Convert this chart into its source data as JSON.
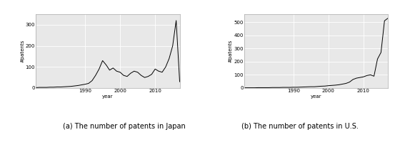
{
  "japan_years": [
    1976,
    1977,
    1978,
    1979,
    1980,
    1981,
    1982,
    1983,
    1984,
    1985,
    1986,
    1987,
    1988,
    1989,
    1990,
    1991,
    1992,
    1993,
    1994,
    1995,
    1996,
    1997,
    1998,
    1999,
    2000,
    2001,
    2002,
    2003,
    2004,
    2005,
    2006,
    2007,
    2008,
    2009,
    2010,
    2011,
    2012,
    2013,
    2014,
    2015,
    2016,
    2017
  ],
  "japan_values": [
    2,
    3,
    3,
    3,
    4,
    4,
    5,
    5,
    6,
    7,
    8,
    10,
    12,
    15,
    18,
    22,
    35,
    60,
    90,
    130,
    110,
    85,
    95,
    80,
    75,
    60,
    55,
    70,
    80,
    75,
    60,
    50,
    55,
    65,
    90,
    80,
    75,
    100,
    140,
    200,
    320,
    30
  ],
  "us_years": [
    1976,
    1977,
    1978,
    1979,
    1980,
    1981,
    1982,
    1983,
    1984,
    1985,
    1986,
    1987,
    1988,
    1989,
    1990,
    1991,
    1992,
    1993,
    1994,
    1995,
    1996,
    1997,
    1998,
    1999,
    2000,
    2001,
    2002,
    2003,
    2004,
    2005,
    2006,
    2007,
    2008,
    2009,
    2010,
    2011,
    2012,
    2013,
    2014,
    2015,
    2016,
    2017
  ],
  "us_values": [
    2,
    2,
    2,
    2,
    3,
    3,
    3,
    3,
    4,
    4,
    4,
    5,
    5,
    5,
    6,
    6,
    7,
    8,
    9,
    10,
    10,
    12,
    14,
    15,
    18,
    20,
    22,
    25,
    30,
    35,
    45,
    65,
    75,
    80,
    85,
    95,
    100,
    90,
    220,
    270,
    510,
    530
  ],
  "japan_yticks": [
    0,
    100,
    200,
    300
  ],
  "us_yticks": [
    0,
    100,
    200,
    300,
    400,
    500
  ],
  "japan_xticks": [
    1990,
    2000,
    2010
  ],
  "us_xticks": [
    1990,
    2000,
    2010
  ],
  "ylabel": "#patents",
  "xlabel": "year",
  "title_a": "(a) The number of patents in Japan",
  "title_b": "(b) The number of patents in U.S.",
  "line_color": "#000000",
  "bg_color": "#e8e8e8",
  "grid_color": "#ffffff",
  "caption_fontsize": 7,
  "axis_label_fontsize": 5,
  "tick_fontsize": 5
}
